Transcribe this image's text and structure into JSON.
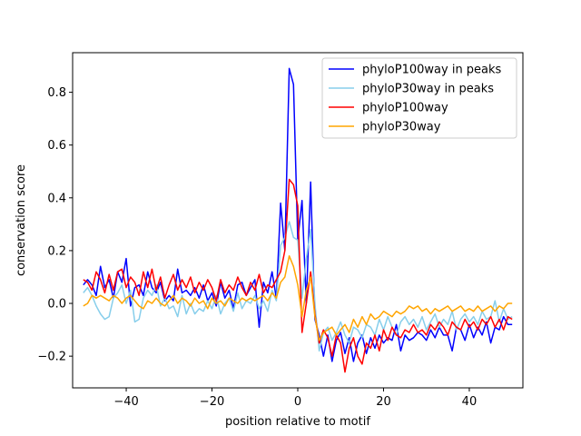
{
  "chart_data": {
    "type": "line",
    "title": "",
    "xlabel": "position relative to motif",
    "ylabel": "conservation score",
    "xlim": [
      -52.5,
      52.5
    ],
    "ylim": [
      -0.32,
      0.95
    ],
    "xticks": [
      -40,
      -20,
      0,
      20,
      40
    ],
    "xtick_labels": [
      "−40",
      "−20",
      "0",
      "20",
      "40"
    ],
    "yticks": [
      -0.2,
      0.0,
      0.2,
      0.4,
      0.6,
      0.8
    ],
    "ytick_labels": [
      "−0.2",
      "0.0",
      "0.2",
      "0.4",
      "0.6",
      "0.8"
    ],
    "grid": false,
    "legend_position": "top-right",
    "x_start": -50,
    "x_step": 1,
    "series": [
      {
        "name": "phyloP100way in peaks",
        "color": "#0000ff",
        "values": [
          0.07,
          0.09,
          0.07,
          0.03,
          0.14,
          0.06,
          0.09,
          0.02,
          0.12,
          0.08,
          0.17,
          -0.01,
          0.06,
          0.07,
          0.03,
          0.12,
          0.06,
          0.04,
          0.08,
          0.01,
          0.03,
          0.01,
          0.13,
          0.04,
          0.05,
          0.03,
          0.06,
          0.02,
          0.07,
          0.01,
          0.04,
          -0.01,
          0.08,
          0.02,
          0.05,
          -0.02,
          0.07,
          0.08,
          0.03,
          0.06,
          0.09,
          -0.09,
          0.08,
          0.04,
          0.12,
          0.02,
          0.38,
          0.2,
          0.89,
          0.83,
          0.24,
          0.39,
          0.0,
          0.46,
          -0.06,
          -0.12,
          -0.2,
          -0.12,
          -0.22,
          -0.14,
          -0.11,
          -0.19,
          -0.13,
          -0.22,
          -0.15,
          -0.12,
          -0.19,
          -0.13,
          -0.17,
          -0.12,
          -0.15,
          -0.13,
          -0.14,
          -0.08,
          -0.18,
          -0.12,
          -0.14,
          -0.13,
          -0.11,
          -0.12,
          -0.14,
          -0.1,
          -0.13,
          -0.09,
          -0.12,
          -0.12,
          -0.18,
          -0.09,
          -0.1,
          -0.14,
          -0.08,
          -0.13,
          -0.09,
          -0.12,
          -0.07,
          -0.15,
          -0.09,
          -0.1,
          -0.05,
          -0.08,
          -0.08
        ]
      },
      {
        "name": "phyloP30way in peaks",
        "color": "#87ceeb",
        "values": [
          0.04,
          0.06,
          0.03,
          -0.01,
          -0.04,
          -0.06,
          -0.05,
          0.02,
          0.04,
          0.07,
          0.0,
          0.05,
          -0.07,
          -0.06,
          0.02,
          0.05,
          0.03,
          0.07,
          -0.01,
          0.02,
          -0.02,
          -0.01,
          -0.05,
          0.03,
          -0.04,
          0.0,
          -0.04,
          -0.02,
          -0.03,
          0.01,
          -0.02,
          0.03,
          -0.04,
          0.0,
          0.02,
          -0.03,
          0.04,
          -0.02,
          0.01,
          0.0,
          0.03,
          -0.02,
          0.01,
          -0.03,
          0.05,
          0.01,
          0.22,
          0.25,
          0.31,
          0.25,
          0.24,
          0.02,
          0.17,
          0.28,
          0.0,
          -0.18,
          -0.11,
          -0.09,
          -0.14,
          -0.11,
          -0.07,
          -0.12,
          -0.15,
          -0.09,
          -0.1,
          -0.13,
          -0.08,
          -0.09,
          -0.12,
          -0.06,
          -0.1,
          -0.05,
          -0.09,
          -0.12,
          -0.07,
          -0.05,
          -0.08,
          -0.06,
          -0.09,
          -0.05,
          -0.1,
          -0.07,
          -0.04,
          -0.09,
          -0.06,
          -0.08,
          -0.03,
          -0.1,
          -0.06,
          -0.04,
          -0.07,
          -0.05,
          -0.08,
          -0.03,
          -0.06,
          -0.05,
          0.01,
          -0.07,
          -0.02,
          -0.06,
          -0.05
        ]
      },
      {
        "name": "phyloP100way",
        "color": "#ff0000",
        "values": [
          0.09,
          0.08,
          0.05,
          0.12,
          0.09,
          0.04,
          0.11,
          0.05,
          0.12,
          0.13,
          0.06,
          0.1,
          0.08,
          0.03,
          0.12,
          0.06,
          0.13,
          0.05,
          0.1,
          0.02,
          0.07,
          0.11,
          0.05,
          0.09,
          0.06,
          0.1,
          0.04,
          0.08,
          0.05,
          0.09,
          0.06,
          0.01,
          0.09,
          0.04,
          0.07,
          0.05,
          0.1,
          0.06,
          0.03,
          0.08,
          0.05,
          0.11,
          0.04,
          0.07,
          0.06,
          0.09,
          0.12,
          0.2,
          0.47,
          0.45,
          0.37,
          -0.11,
          0.0,
          0.12,
          -0.04,
          -0.15,
          -0.1,
          -0.13,
          -0.2,
          -0.12,
          -0.15,
          -0.26,
          -0.17,
          -0.13,
          -0.2,
          -0.23,
          -0.15,
          -0.17,
          -0.12,
          -0.18,
          -0.1,
          -0.14,
          -0.09,
          -0.12,
          -0.13,
          -0.1,
          -0.11,
          -0.08,
          -0.11,
          -0.1,
          -0.12,
          -0.08,
          -0.1,
          -0.07,
          -0.09,
          -0.12,
          -0.07,
          -0.09,
          -0.1,
          -0.06,
          -0.09,
          -0.07,
          -0.1,
          -0.06,
          -0.08,
          -0.05,
          -0.09,
          -0.06,
          -0.1,
          -0.05,
          -0.06
        ]
      },
      {
        "name": "phyloP30way",
        "color": "#ffa500",
        "values": [
          -0.01,
          0.0,
          0.03,
          0.02,
          0.03,
          0.02,
          0.01,
          0.03,
          0.02,
          0.0,
          0.02,
          0.03,
          0.01,
          -0.01,
          -0.02,
          0.01,
          0.0,
          0.02,
          0.0,
          -0.01,
          0.01,
          0.03,
          0.0,
          0.02,
          0.01,
          -0.01,
          0.02,
          0.0,
          0.01,
          -0.02,
          0.02,
          0.0,
          0.01,
          -0.01,
          0.02,
          0.01,
          0.0,
          0.02,
          0.01,
          0.02,
          0.01,
          0.02,
          0.03,
          0.01,
          0.04,
          0.02,
          0.08,
          0.1,
          0.18,
          0.14,
          0.07,
          -0.05,
          0.05,
          0.1,
          -0.05,
          -0.14,
          -0.11,
          -0.1,
          -0.09,
          -0.12,
          -0.1,
          -0.08,
          -0.11,
          -0.06,
          -0.09,
          -0.05,
          -0.08,
          -0.04,
          -0.06,
          -0.05,
          -0.03,
          -0.04,
          -0.05,
          -0.03,
          -0.04,
          -0.03,
          -0.01,
          -0.02,
          -0.01,
          -0.03,
          -0.02,
          -0.04,
          -0.02,
          -0.03,
          -0.02,
          -0.01,
          -0.03,
          -0.02,
          -0.01,
          -0.03,
          -0.02,
          -0.03,
          -0.01,
          -0.03,
          -0.02,
          -0.01,
          -0.03,
          -0.01,
          -0.02,
          0.0,
          0.0
        ]
      }
    ]
  }
}
